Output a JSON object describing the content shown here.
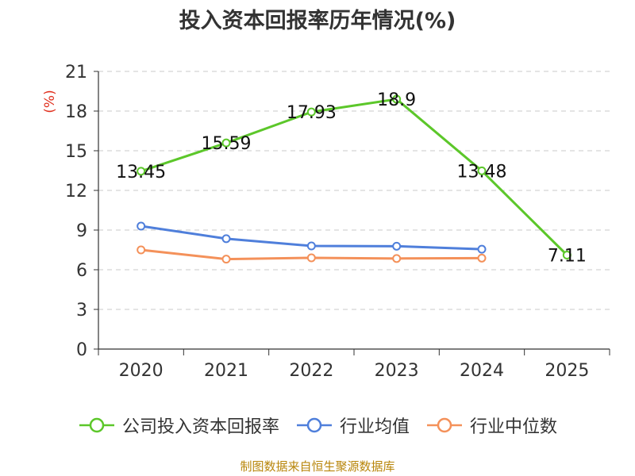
{
  "chart_data": {
    "type": "line",
    "title": "投入资本回报率历年情况(%)",
    "ylabel": "(%)",
    "xlabel": "",
    "categories": [
      "2020",
      "2021",
      "2022",
      "2023",
      "2024",
      "2025"
    ],
    "ylim": [
      0,
      21
    ],
    "yticks": [
      0,
      3,
      6,
      9,
      12,
      15,
      18,
      21
    ],
    "grid": true,
    "legend_position": "bottom",
    "series": [
      {
        "name": "公司投入资本回报率",
        "color": "#5cc72a",
        "values": [
          13.45,
          15.59,
          17.93,
          18.9,
          13.48,
          7.11
        ],
        "labels": [
          "13.45",
          "15.59",
          "17.93",
          "18.9",
          "13.48",
          "7.11"
        ]
      },
      {
        "name": "行业均值",
        "color": "#4f7fdb",
        "values": [
          9.3,
          8.35,
          7.8,
          7.78,
          7.55,
          null
        ]
      },
      {
        "name": "行业中位数",
        "color": "#f4915a",
        "values": [
          7.5,
          6.8,
          6.9,
          6.85,
          6.88,
          null
        ]
      }
    ]
  },
  "source_note": "制图数据来自恒生聚源数据库"
}
